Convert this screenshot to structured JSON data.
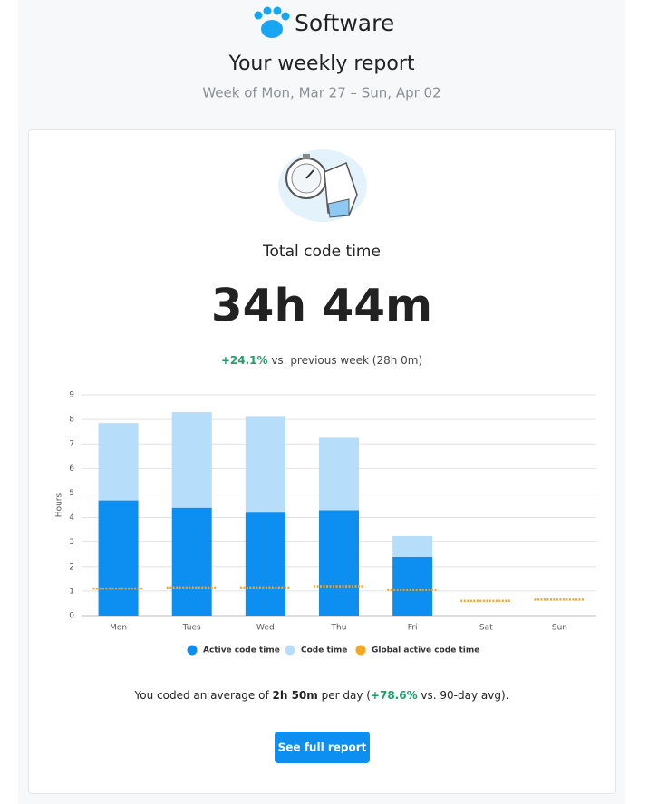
{
  "header": {
    "brand": "Software",
    "title": "Your weekly report",
    "subtitle": "Week of Mon, Mar 27 – Sun, Apr 02"
  },
  "summary": {
    "label": "Total code time",
    "total": "34h 44m",
    "change": "+24.1%",
    "comparison": " vs. previous week (28h 0m)"
  },
  "chart_data": {
    "type": "bar",
    "stacked": true,
    "ylabel": "Hours",
    "categories": [
      "Mon",
      "Tues",
      "Wed",
      "Thu",
      "Fri",
      "Sat",
      "Sun"
    ],
    "series": [
      {
        "name": "Active code time",
        "color": "#0d8ff2",
        "values": [
          4.7,
          4.4,
          4.2,
          4.3,
          2.4,
          0,
          0
        ]
      },
      {
        "name": "Code time",
        "color": "#b6ddfa",
        "values": [
          3.15,
          3.9,
          3.9,
          2.95,
          0.85,
          0,
          0
        ]
      },
      {
        "name": "Global active code time",
        "color": "#f5a623",
        "style": "dotted",
        "values": [
          1.1,
          1.15,
          1.15,
          1.2,
          1.05,
          0.6,
          0.65
        ]
      }
    ],
    "ylim": [
      0,
      9
    ],
    "yticks": [
      0,
      1,
      2,
      3,
      4,
      5,
      6,
      7,
      8,
      9
    ],
    "grid": true,
    "legend": "bottom"
  },
  "footer": {
    "before": "You coded an average of ",
    "average": "2h 50m",
    "middle": " per day (",
    "change": "+78.6%",
    "after": " vs. 90-day avg)."
  },
  "button": "See full report"
}
